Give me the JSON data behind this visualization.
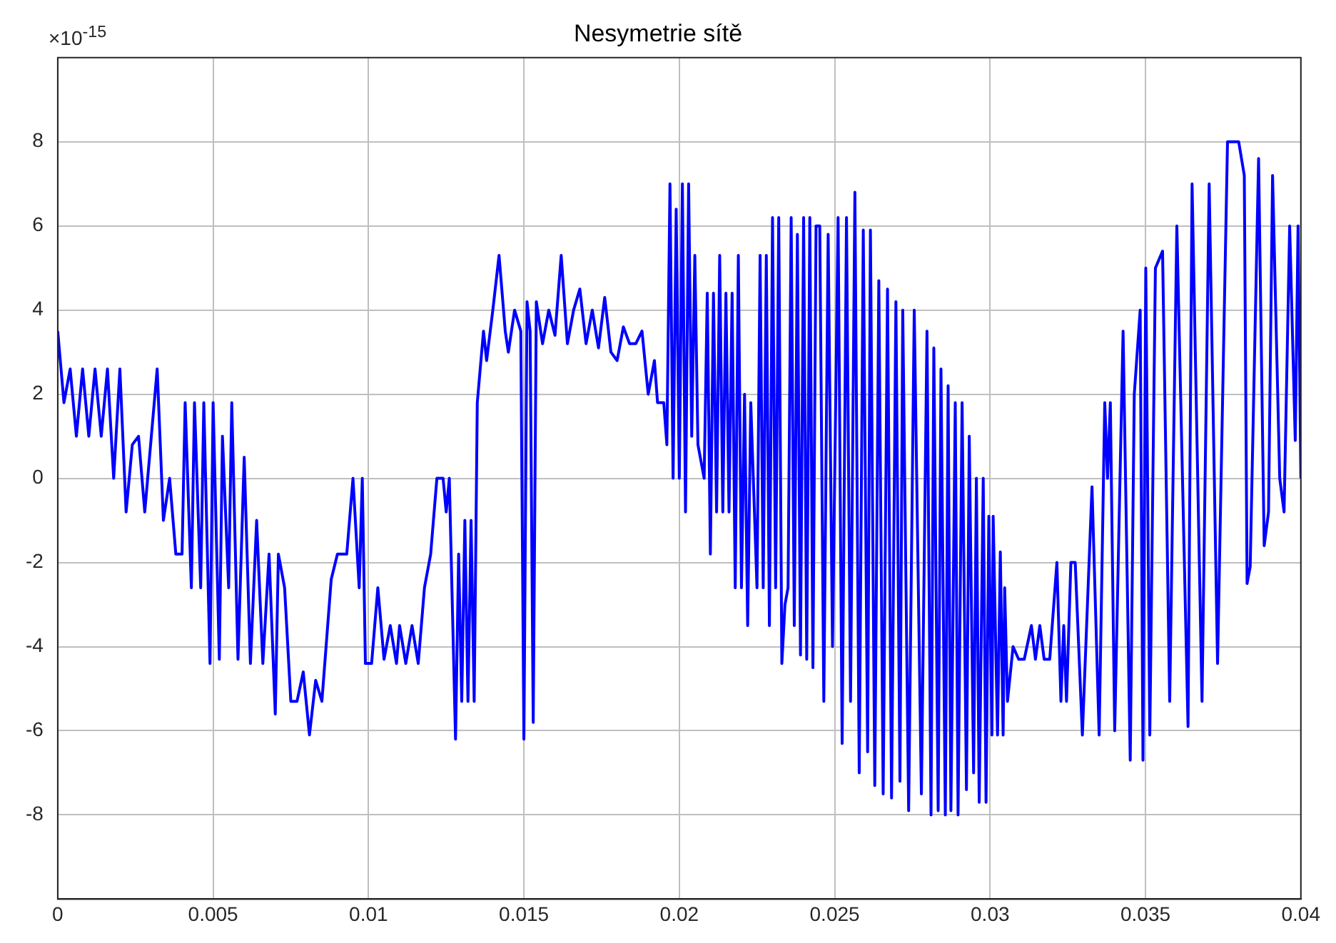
{
  "chart_data": {
    "type": "line",
    "title": "Nesymetrie sítě",
    "annotations": [
      "×10$^{-15}$"
    ],
    "xlim": [
      0,
      0.04
    ],
    "xticks": [
      0,
      0.005,
      0.01,
      0.015,
      0.02,
      0.025,
      0.03,
      0.035,
      0.04
    ],
    "ylim": [
      -10,
      10
    ],
    "yticks": [
      -8,
      -6,
      -4,
      -2,
      0,
      2,
      4,
      6,
      8
    ],
    "grid": true,
    "legend": false,
    "marker": "none",
    "line_style": "solid",
    "series": [
      {
        "color": "#0000ff",
        "x": [
          0,
          0.0002,
          0.0004,
          0.0006,
          0.0008,
          0.001,
          0.0012,
          0.0014,
          0.0016,
          0.0018,
          0.002,
          0.0022,
          0.0024,
          0.0026,
          0.0028,
          0.0032,
          0.0034,
          0.0036,
          0.0038,
          0.004,
          0.0041,
          0.0043,
          0.0044,
          0.0046,
          0.0047,
          0.0049,
          0.005,
          0.0052,
          0.0053,
          0.0055,
          0.0056,
          0.0058,
          0.006,
          0.0062,
          0.0064,
          0.0066,
          0.0068,
          0.007,
          0.0071,
          0.0073,
          0.0075,
          0.0077,
          0.0079,
          0.0081,
          0.0083,
          0.0085,
          0.0088,
          0.009,
          0.0093,
          0.0095,
          0.0097,
          0.0098,
          0.0099,
          0.0101,
          0.0103,
          0.0105,
          0.0107,
          0.0109,
          0.011,
          0.0112,
          0.0114,
          0.0116,
          0.0118,
          0.012,
          0.0122,
          0.0124,
          0.0125,
          0.0126,
          0.0128,
          0.0129,
          0.013,
          0.0131,
          0.0132,
          0.0133,
          0.0134,
          0.0135,
          0.0137,
          0.0138,
          0.014,
          0.0142,
          0.0144,
          0.0145,
          0.0147,
          0.0149,
          0.015,
          0.0151,
          0.0152,
          0.0153,
          0.0154,
          0.0156,
          0.0158,
          0.016,
          0.0162,
          0.0164,
          0.0166,
          0.0168,
          0.017,
          0.0172,
          0.0174,
          0.0176,
          0.0178,
          0.018,
          0.0182,
          0.0184,
          0.0186,
          0.0188,
          0.019,
          0.0192,
          0.0193,
          0.0195,
          0.0196,
          0.0197,
          0.0198,
          0.0199,
          0.02,
          0.0201,
          0.0202,
          0.0203,
          0.0204,
          0.0205,
          0.0206,
          0.0208,
          0.0209,
          0.021,
          0.0211,
          0.0212,
          0.0213,
          0.0214,
          0.0215,
          0.0216,
          0.0217,
          0.0218,
          0.0219,
          0.022,
          0.0221,
          0.0222,
          0.0223,
          0.0225,
          0.0226,
          0.0227,
          0.0228,
          0.0229,
          0.023,
          0.0231,
          0.0232,
          0.0233,
          0.0234,
          0.0235,
          0.0236,
          0.0237,
          0.0238,
          0.0239,
          0.024,
          0.0241,
          0.0242,
          0.0243,
          0.0244,
          0.02452,
          0.02465,
          0.02479,
          0.02493,
          0.02511,
          0.02524,
          0.02538,
          0.02551,
          0.02565,
          0.02579,
          0.02592,
          0.02606,
          0.02615,
          0.02629,
          0.02642,
          0.02656,
          0.0267,
          0.02683,
          0.02697,
          0.0271,
          0.02719,
          0.02738,
          0.02756,
          0.02779,
          0.02797,
          0.0281,
          0.02819,
          0.02833,
          0.02842,
          0.02856,
          0.02865,
          0.02874,
          0.02888,
          0.02897,
          0.0291,
          0.02924,
          0.02933,
          0.02947,
          0.02956,
          0.02965,
          0.02978,
          0.02987,
          0.02996,
          0.03006,
          0.0301,
          0.03024,
          0.03033,
          0.03042,
          0.03047,
          0.03056,
          0.03074,
          0.03092,
          0.0311,
          0.03133,
          0.03146,
          0.0316,
          0.03174,
          0.03192,
          0.03215,
          0.03228,
          0.03237,
          0.03246,
          0.0326,
          0.03274,
          0.03297,
          0.03328,
          0.03351,
          0.03369,
          0.03378,
          0.03387,
          0.03401,
          0.03428,
          0.03451,
          0.03464,
          0.03483,
          0.03492,
          0.03501,
          0.03514,
          0.03532,
          0.03555,
          0.03578,
          0.03601,
          0.03637,
          0.0365,
          0.03682,
          0.03705,
          0.03732,
          0.03764,
          0.038,
          0.03818,
          0.03827,
          0.03837,
          0.03864,
          0.03882,
          0.03896,
          0.03909,
          0.03932,
          0.03946,
          0.03964,
          0.03982,
          0.03991,
          0.04
        ],
        "values": [
          3.5,
          1.8,
          2.6,
          1.0,
          2.6,
          1.0,
          2.6,
          1.0,
          2.6,
          0,
          2.6,
          -0.8,
          0.8,
          1.0,
          -0.8,
          2.6,
          -1.0,
          0,
          -1.8,
          -1.8,
          1.8,
          -2.6,
          1.8,
          -2.6,
          1.8,
          -4.4,
          1.8,
          -4.3,
          1.0,
          -2.6,
          1.8,
          -4.3,
          0.5,
          -4.4,
          -1.0,
          -4.4,
          -1.8,
          -5.6,
          -1.8,
          -2.6,
          -5.3,
          -5.3,
          -4.6,
          -6.1,
          -4.8,
          -5.3,
          -2.4,
          -1.8,
          -1.8,
          0,
          -2.6,
          0,
          -4.4,
          -4.4,
          -2.6,
          -4.3,
          -3.5,
          -4.4,
          -3.5,
          -4.4,
          -3.5,
          -4.4,
          -2.6,
          -1.8,
          0,
          0,
          -0.8,
          0,
          -6.2,
          -1.8,
          -5.3,
          -1.0,
          -5.3,
          -1.0,
          -5.3,
          1.8,
          3.5,
          2.8,
          4.0,
          5.3,
          3.5,
          3.0,
          4.0,
          3.5,
          -6.2,
          4.2,
          3.5,
          -5.8,
          4.2,
          3.2,
          4.0,
          3.4,
          5.3,
          3.2,
          4.0,
          4.5,
          3.2,
          4.0,
          3.1,
          4.3,
          3.0,
          2.8,
          3.6,
          3.2,
          3.2,
          3.5,
          2.0,
          2.8,
          1.8,
          1.8,
          0.8,
          7.0,
          0,
          6.4,
          0,
          7.0,
          -0.8,
          7.0,
          1.0,
          5.3,
          0.8,
          0,
          4.4,
          -1.8,
          4.4,
          -0.8,
          5.3,
          -0.8,
          4.4,
          -0.8,
          4.4,
          -2.6,
          5.3,
          -2.6,
          2.0,
          -3.5,
          1.8,
          -2.6,
          5.3,
          -2.6,
          5.3,
          -3.5,
          6.2,
          -2.6,
          6.2,
          -4.4,
          -3.0,
          -2.6,
          6.2,
          -3.5,
          5.8,
          -4.2,
          6.2,
          -4.3,
          6.2,
          -4.5,
          6.0,
          6.0,
          -5.3,
          5.8,
          -4.0,
          6.2,
          -6.3,
          6.2,
          -5.3,
          6.8,
          -7.0,
          5.9,
          -6.5,
          5.9,
          -7.3,
          4.7,
          -7.5,
          4.5,
          -7.6,
          4.2,
          -7.2,
          4.0,
          -7.9,
          4.0,
          -7.5,
          3.5,
          -8.0,
          3.1,
          -7.9,
          2.6,
          -8.0,
          2.2,
          -7.9,
          1.8,
          -8.0,
          1.8,
          -7.4,
          1.0,
          -7.0,
          0,
          -7.7,
          0,
          -7.7,
          -0.9,
          -6.1,
          -0.9,
          -6.1,
          -1.75,
          -6.1,
          -2.6,
          -5.3,
          -4.0,
          -4.3,
          -4.3,
          -3.5,
          -4.3,
          -3.5,
          -4.3,
          -4.3,
          -2.0,
          -5.3,
          -3.5,
          -5.3,
          -2.0,
          -2.0,
          -6.1,
          -0.2,
          -6.1,
          1.8,
          0,
          1.8,
          -6.0,
          3.5,
          -6.7,
          2.0,
          4.0,
          -6.7,
          5.0,
          -6.1,
          5.0,
          5.4,
          -5.3,
          6.0,
          -5.9,
          7.0,
          -5.3,
          7.0,
          -4.4,
          8.0,
          8.0,
          7.2,
          -2.5,
          -2.1,
          7.6,
          -1.6,
          -0.8,
          7.2,
          0,
          -0.8,
          6.0,
          0.9,
          6.0,
          0
        ]
      }
    ]
  }
}
